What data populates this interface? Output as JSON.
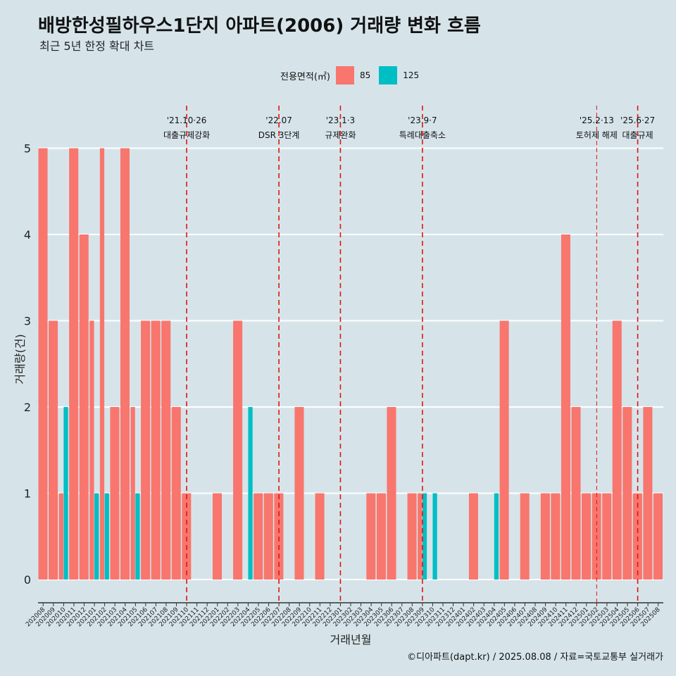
{
  "title": "배방한성필하우스1단지 아파트(2006) 거래량 변화 흐름",
  "subtitle": "최근 5년 한정 확대 차트",
  "caption": "©디아파트(dapt.kr) / 2025.08.08 / 자료=국토교통부 실거래가",
  "legend": {
    "label": "전용면적(㎡)",
    "items": [
      {
        "name": "85",
        "color": "#f8766d"
      },
      {
        "name": "125",
        "color": "#00bfc4"
      }
    ]
  },
  "chart_data": {
    "type": "bar",
    "xlabel": "거래년월",
    "ylabel": "거래량(건)",
    "ylim": [
      0,
      5
    ],
    "yticks": [
      0,
      1,
      2,
      3,
      4,
      5
    ],
    "categories": [
      "202008",
      "202009",
      "202010",
      "202011",
      "202012",
      "202101",
      "202102",
      "202103",
      "202104",
      "202105",
      "202106",
      "202107",
      "202108",
      "202109",
      "202110",
      "202111",
      "202112",
      "202201",
      "202202",
      "202203",
      "202204",
      "202205",
      "202206",
      "202207",
      "202208",
      "202209",
      "202210",
      "202211",
      "202212",
      "202301",
      "202302",
      "202303",
      "202304",
      "202305",
      "202306",
      "202307",
      "202308",
      "202309",
      "202310",
      "202311",
      "202312",
      "202401",
      "202402",
      "202403",
      "202404",
      "202405",
      "202406",
      "202407",
      "202408",
      "202409",
      "202410",
      "202411",
      "202412",
      "202501",
      "202502",
      "202503",
      "202504",
      "202505",
      "202506",
      "202507",
      "202508"
    ],
    "series": [
      {
        "name": "85",
        "color": "#f8766d",
        "values": [
          5,
          3,
          1,
          5,
          4,
          3,
          5,
          2,
          5,
          2,
          3,
          3,
          3,
          2,
          1,
          0,
          0,
          1,
          0,
          3,
          0,
          1,
          1,
          1,
          0,
          2,
          0,
          1,
          0,
          0,
          0,
          0,
          1,
          1,
          2,
          0,
          1,
          1,
          0,
          0,
          0,
          0,
          1,
          0,
          0,
          3,
          0,
          1,
          0,
          1,
          1,
          4,
          2,
          1,
          1,
          1,
          3,
          2,
          1,
          2,
          1
        ]
      },
      {
        "name": "125",
        "color": "#00bfc4",
        "values": [
          0,
          0,
          2,
          0,
          0,
          1,
          1,
          0,
          0,
          1,
          0,
          0,
          0,
          0,
          0,
          0,
          0,
          0,
          0,
          0,
          2,
          0,
          0,
          0,
          0,
          0,
          0,
          0,
          0,
          0,
          0,
          0,
          0,
          0,
          0,
          0,
          0,
          1,
          1,
          0,
          0,
          0,
          0,
          0,
          1,
          0,
          0,
          0,
          0,
          0,
          0,
          0,
          0,
          0,
          0,
          0,
          0,
          0,
          0,
          0,
          0
        ]
      }
    ],
    "events": [
      {
        "month": "202110",
        "date": "'21.10·26",
        "label": "대출규제강화",
        "style": "major"
      },
      {
        "month": "202207",
        "date": "'22.07",
        "label": "DSR 3단계",
        "style": "major"
      },
      {
        "month": "202301",
        "date": "'23.1·3",
        "label": "규제완화",
        "style": "major"
      },
      {
        "month": "202309",
        "date": "'23.9·7",
        "label": "특례대출축소",
        "style": "major"
      },
      {
        "month": "202502",
        "date": "'25.2·13",
        "label": "토허제 해제",
        "style": "minor"
      },
      {
        "month": "202506",
        "date": "'25.6·27",
        "label": "대출규제",
        "style": "major"
      }
    ]
  }
}
